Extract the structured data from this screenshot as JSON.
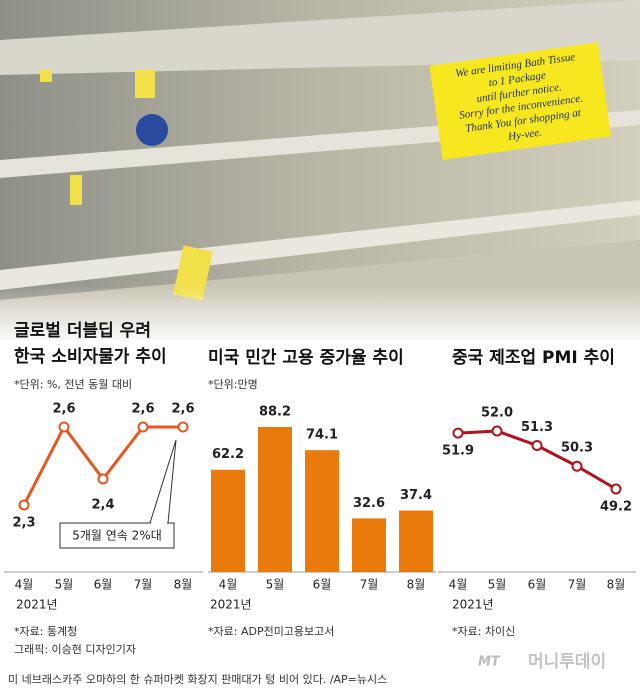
{
  "photo": {
    "sign": [
      "We are limiting Bath Tissue",
      "to 1 Package",
      "until further notice.",
      "Sorry for the inconvenience.",
      "Thank You for shopping at",
      "Hy-vee."
    ]
  },
  "chart_data": [
    {
      "type": "line",
      "title": "글로벌 더블딥 우려",
      "subtitle": "한국 소비자물가 추이",
      "unit": "*단위: %, 전년 동월 대비",
      "categories": [
        "4월",
        "5월",
        "6월",
        "7월",
        "8월"
      ],
      "year": "2021년",
      "values": [
        2.3,
        2.6,
        2.4,
        2.6,
        2.6
      ],
      "value_labels": [
        "2,3",
        "2,6",
        "2,4",
        "2,6",
        "2,6"
      ],
      "color": "#e8561c",
      "annotation": "5개월 연속 2%대",
      "source": "*자료: 통계청",
      "credit": "그래픽: 이승현 디자인기자"
    },
    {
      "type": "bar",
      "title": "미국 민간 고용 증가율 추이",
      "unit": "*단위:만명",
      "categories": [
        "4월",
        "5월",
        "6월",
        "7월",
        "8월"
      ],
      "year": "2021년",
      "values": [
        62.2,
        88.2,
        74.1,
        32.6,
        37.4
      ],
      "color": "#ea7a0c",
      "source": "*자료: ADP전미고용보고서"
    },
    {
      "type": "line",
      "title": "중국 제조업 PMI 추이",
      "categories": [
        "4월",
        "5월",
        "6월",
        "7월",
        "8월"
      ],
      "year": "2021년",
      "values": [
        51.9,
        52.0,
        51.3,
        50.3,
        49.2
      ],
      "value_labels": [
        "51.9",
        "52.0",
        "51.3",
        "50.3",
        "49.2"
      ],
      "color": "#b3121d",
      "source": "*자료: 차이신"
    }
  ],
  "caption": "미 네브래스카주 오마하의 한 슈퍼마켓 화장지 판매대가 텅 비어 있다. /AP=뉴시스",
  "logo": {
    "mark": "MT",
    "name": "머니투데이"
  }
}
